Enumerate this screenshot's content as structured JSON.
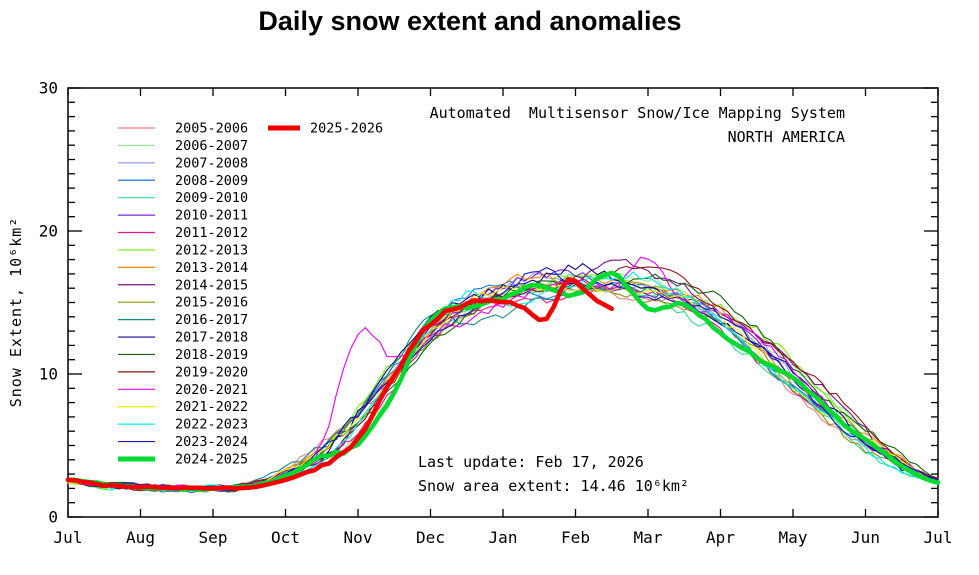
{
  "title": "Daily snow extent and anomalies",
  "annotations": {
    "system_line1": "Automated  Multisensor Snow/Ice Mapping System",
    "system_line2": "NORTH AMERICA",
    "last_update": "Last update: Feb 17, 2026",
    "snow_area": "Snow area extent: 14.46 10⁶km²"
  },
  "colors": {
    "background": "#FFFFFF",
    "axis": "#000000",
    "current_season": "#F50000",
    "previous_season": "#00D930"
  },
  "chart_data": {
    "type": "line",
    "title": "Daily snow extent and anomalies",
    "region": "NORTH AMERICA",
    "xlabel": "",
    "ylabel": "Snow Extent, 10⁶km²",
    "x_tick_labels": [
      "Jul",
      "Aug",
      "Sep",
      "Oct",
      "Nov",
      "Dec",
      "Jan",
      "Feb",
      "Mar",
      "Apr",
      "May",
      "Jun",
      "Jul"
    ],
    "ylim": [
      0,
      30
    ],
    "yticks_major": [
      0,
      10,
      20,
      30
    ],
    "ytick_minor_step": 1,
    "grid": false,
    "legend_position": "top-left",
    "x_step_months": 0.5,
    "last_value": 14.46,
    "series": [
      {
        "name": "2005-2006",
        "color": "#F08080",
        "width": 1.1,
        "values": [
          2.4,
          2.2,
          2.0,
          2.0,
          2.1,
          2.3,
          3.2,
          4.8,
          7.2,
          10.4,
          13.0,
          14.8,
          15.2,
          15.6,
          16.8,
          16.0,
          15.5,
          14.9,
          13.2,
          11.2,
          9.0,
          7.0,
          5.0,
          3.5,
          2.5
        ]
      },
      {
        "name": "2006-2007",
        "color": "#90EE90",
        "width": 1.1,
        "values": [
          2.6,
          2.3,
          2.1,
          2.0,
          2.0,
          2.1,
          2.8,
          4.0,
          6.2,
          9.0,
          12.0,
          14.0,
          15.8,
          16.4,
          16.0,
          16.7,
          16.3,
          15.6,
          14.4,
          12.6,
          10.4,
          8.0,
          5.8,
          3.9,
          2.7
        ]
      },
      {
        "name": "2007-2008",
        "color": "#9A9AF0",
        "width": 1.1,
        "values": [
          2.5,
          2.2,
          2.1,
          2.0,
          2.0,
          2.2,
          3.1,
          4.5,
          7.0,
          10.0,
          13.4,
          15.0,
          16.2,
          16.6,
          16.1,
          15.8,
          16.5,
          15.7,
          14.0,
          12.0,
          9.8,
          7.6,
          5.5,
          3.7,
          2.6
        ]
      },
      {
        "name": "2008-2009",
        "color": "#1C78E6",
        "width": 1.1,
        "values": [
          2.4,
          2.1,
          2.0,
          1.9,
          2.0,
          2.2,
          3.0,
          4.6,
          7.4,
          10.8,
          13.8,
          15.2,
          16.0,
          15.5,
          16.4,
          16.6,
          15.8,
          15.0,
          13.6,
          11.6,
          9.4,
          7.2,
          5.2,
          3.6,
          2.5
        ]
      },
      {
        "name": "2009-2010",
        "color": "#2EE08C",
        "width": 1.1,
        "values": [
          2.5,
          2.2,
          2.1,
          2.0,
          2.0,
          2.1,
          2.9,
          4.2,
          6.6,
          9.4,
          12.4,
          14.6,
          15.6,
          16.2,
          16.6,
          16.1,
          15.3,
          14.5,
          13.0,
          10.8,
          8.6,
          6.5,
          4.7,
          3.3,
          2.4
        ]
      },
      {
        "name": "2010-2011",
        "color": "#7D26CD",
        "width": 1.1,
        "values": [
          2.6,
          2.3,
          2.1,
          2.0,
          2.0,
          2.2,
          3.0,
          4.4,
          7.0,
          10.2,
          13.2,
          14.9,
          15.9,
          16.5,
          16.9,
          16.3,
          16.0,
          15.2,
          13.9,
          11.9,
          9.7,
          7.5,
          5.4,
          3.7,
          2.6
        ]
      },
      {
        "name": "2011-2012",
        "color": "#EE1289",
        "width": 1.1,
        "values": [
          2.5,
          2.2,
          2.1,
          2.0,
          2.0,
          2.1,
          2.8,
          4.1,
          6.4,
          9.2,
          12.2,
          13.9,
          14.9,
          15.5,
          15.9,
          16.1,
          15.4,
          14.6,
          13.3,
          11.3,
          9.1,
          6.9,
          5.0,
          3.5,
          2.5
        ]
      },
      {
        "name": "2012-2013",
        "color": "#76EE00",
        "width": 1.1,
        "values": [
          2.4,
          2.2,
          2.0,
          1.9,
          2.0,
          2.2,
          3.1,
          4.7,
          7.3,
          10.6,
          13.5,
          15.1,
          15.7,
          16.1,
          16.5,
          16.7,
          16.2,
          15.8,
          14.7,
          12.8,
          10.6,
          8.2,
          5.9,
          4.0,
          2.7
        ]
      },
      {
        "name": "2013-2014",
        "color": "#EE8800",
        "width": 1.1,
        "values": [
          2.5,
          2.2,
          2.1,
          2.0,
          2.0,
          2.2,
          3.0,
          4.5,
          7.1,
          10.3,
          13.3,
          15.0,
          16.0,
          16.8,
          16.3,
          16.9,
          16.2,
          15.4,
          14.1,
          12.1,
          9.9,
          7.7,
          5.6,
          3.8,
          2.6
        ]
      },
      {
        "name": "2014-2015",
        "color": "#7A0F8C",
        "width": 1.1,
        "values": [
          2.6,
          2.3,
          2.1,
          2.0,
          2.0,
          2.1,
          2.9,
          4.3,
          6.7,
          9.6,
          12.8,
          14.7,
          15.7,
          16.3,
          16.7,
          17.6,
          16.8,
          16.1,
          14.8,
          12.8,
          10.6,
          8.2,
          6.0,
          4.0,
          2.7
        ]
      },
      {
        "name": "2015-2016",
        "color": "#8F8F0F",
        "width": 1.1,
        "values": [
          2.5,
          2.2,
          2.1,
          2.0,
          2.0,
          2.2,
          3.0,
          4.4,
          6.9,
          9.9,
          12.7,
          14.4,
          15.5,
          16.1,
          15.7,
          15.9,
          15.5,
          14.7,
          13.4,
          11.4,
          9.2,
          7.0,
          5.1,
          3.5,
          2.5
        ]
      },
      {
        "name": "2016-2017",
        "color": "#148C8C",
        "width": 1.1,
        "values": [
          2.4,
          2.2,
          2.0,
          2.0,
          2.1,
          2.3,
          3.2,
          4.9,
          7.6,
          11.0,
          13.9,
          13.2,
          13.8,
          15.4,
          16.1,
          16.3,
          15.6,
          14.8,
          13.5,
          11.5,
          9.3,
          7.1,
          5.2,
          3.6,
          2.5
        ]
      },
      {
        "name": "2017-2018",
        "color": "#0A0A8C",
        "width": 1.1,
        "values": [
          2.5,
          2.2,
          2.1,
          2.0,
          2.0,
          2.2,
          3.1,
          4.6,
          7.2,
          10.5,
          13.6,
          15.4,
          16.4,
          16.8,
          17.2,
          16.5,
          16.0,
          15.3,
          14.0,
          12.0,
          9.8,
          7.6,
          5.5,
          3.7,
          2.6
        ]
      },
      {
        "name": "2018-2019",
        "color": "#146414",
        "width": 1.1,
        "values": [
          2.6,
          2.3,
          2.1,
          2.0,
          2.0,
          2.1,
          2.9,
          4.2,
          6.5,
          9.3,
          12.3,
          14.2,
          15.3,
          15.9,
          16.3,
          16.5,
          17.1,
          16.0,
          14.9,
          13.0,
          10.8,
          8.4,
          6.1,
          4.1,
          2.7
        ]
      },
      {
        "name": "2019-2020",
        "color": "#8C1414",
        "width": 1.1,
        "values": [
          2.5,
          2.2,
          2.1,
          2.0,
          2.0,
          2.2,
          3.0,
          4.4,
          6.8,
          9.7,
          12.5,
          14.5,
          15.6,
          16.2,
          16.6,
          16.8,
          17.3,
          16.4,
          15.0,
          13.1,
          10.9,
          8.5,
          6.2,
          4.1,
          2.7
        ]
      },
      {
        "name": "2020-2021",
        "color": "#EE00EE",
        "width": 1.1,
        "values": [
          2.5,
          2.2,
          2.1,
          2.0,
          2.0,
          2.2,
          3.3,
          5.2,
          12.6,
          10.8,
          12.9,
          14.1,
          15.1,
          15.7,
          16.0,
          15.9,
          18.3,
          15.4,
          14.2,
          12.2,
          10.0,
          7.8,
          5.7,
          3.8,
          2.6
        ]
      },
      {
        "name": "2021-2022",
        "color": "#EEEE00",
        "width": 1.1,
        "values": [
          2.4,
          2.2,
          2.1,
          2.0,
          2.0,
          2.2,
          3.0,
          4.5,
          7.0,
          10.1,
          13.1,
          14.8,
          15.6,
          16.0,
          16.4,
          16.2,
          15.7,
          15.0,
          13.7,
          11.7,
          9.5,
          7.3,
          5.3,
          3.6,
          2.5
        ]
      },
      {
        "name": "2022-2023",
        "color": "#00EEEE",
        "width": 1.1,
        "values": [
          2.5,
          2.3,
          2.1,
          2.0,
          2.0,
          2.1,
          2.9,
          4.3,
          6.6,
          9.5,
          12.9,
          15.6,
          15.1,
          15.8,
          16.2,
          16.4,
          16.5,
          15.7,
          13.9,
          11.4,
          8.8,
          6.6,
          4.8,
          3.4,
          2.5
        ]
      },
      {
        "name": "2023-2024",
        "color": "#1414C8",
        "width": 1.1,
        "values": [
          2.6,
          2.3,
          2.1,
          2.0,
          2.0,
          2.2,
          3.0,
          4.4,
          6.9,
          10.0,
          12.8,
          14.6,
          15.5,
          16.9,
          16.0,
          16.3,
          15.8,
          15.1,
          13.8,
          11.8,
          9.6,
          7.4,
          5.4,
          3.7,
          2.6
        ]
      },
      {
        "name": "2024-2025",
        "color": "#00D930",
        "width": 4.6,
        "values": [
          2.6,
          2.3,
          2.1,
          2.0,
          2.0,
          2.1,
          2.8,
          4.2,
          5.2,
          8.8,
          13.8,
          14.6,
          15.2,
          16.3,
          15.6,
          17.1,
          14.4,
          14.8,
          12.8,
          11.3,
          9.8,
          7.4,
          5.2,
          3.6,
          2.4
        ]
      },
      {
        "name": "2025-2026",
        "color": "#F50000",
        "width": 4.6,
        "x": [
          0,
          0.5,
          1,
          1.5,
          2,
          2.5,
          3,
          3.5,
          4,
          4.5,
          5,
          5.5,
          6,
          6.3,
          6.6,
          6.9,
          7.1,
          7.3,
          7.55
        ],
        "values": [
          2.6,
          2.3,
          2.1,
          2.0,
          2.0,
          2.1,
          2.7,
          3.6,
          5.4,
          9.8,
          13.5,
          15.0,
          15.2,
          14.6,
          13.9,
          16.5,
          15.9,
          15.1,
          14.46
        ]
      }
    ]
  }
}
